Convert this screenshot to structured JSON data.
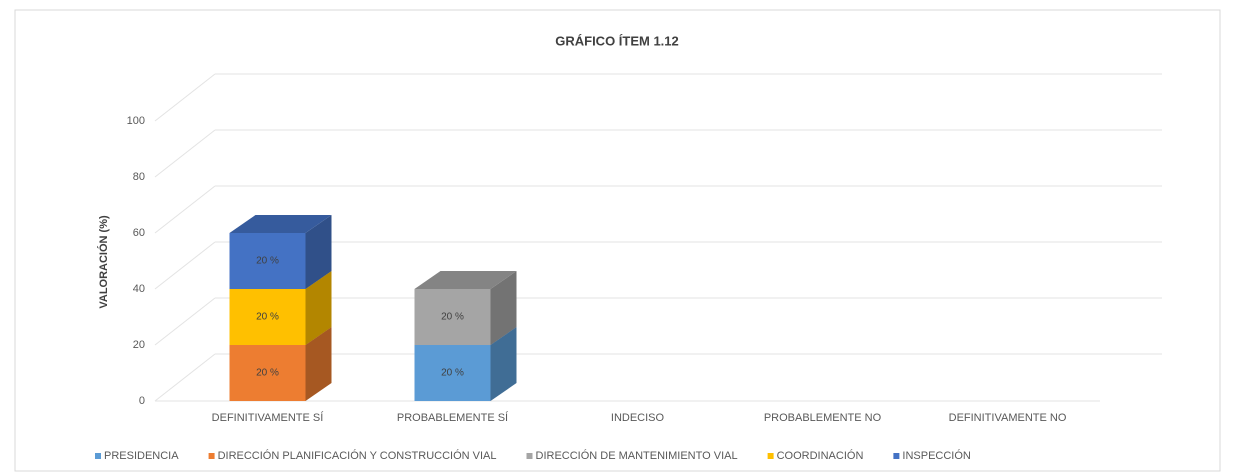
{
  "chart_data": {
    "type": "bar3d-stacked",
    "title": "GRÁFICO ÍTEM 1.12",
    "y_label": "VALORACIÓN (%)",
    "categories": [
      "DEFINITIVAMENTE SÍ",
      "PROBABLEMENTE SÍ",
      "INDECISO",
      "PROBABLEMENTE NO",
      "DEFINITIVAMENTE NO"
    ],
    "series": [
      {
        "name": "PRESIDENCIA",
        "color": "#5b9bd5",
        "values": [
          0,
          20,
          0,
          0,
          0
        ],
        "value_labels": [
          null,
          "20 %",
          null,
          null,
          null
        ]
      },
      {
        "name": "DIRECCIÓN PLANIFICACIÓN Y CONSTRUCCIÓN VIAL",
        "color": "#ed7d31",
        "values": [
          20,
          0,
          0,
          0,
          0
        ],
        "value_labels": [
          "20 %",
          null,
          null,
          null,
          null
        ]
      },
      {
        "name": "DIRECCIÓN DE MANTENIMIENTO VIAL",
        "color": "#a5a5a5",
        "values": [
          0,
          20,
          0,
          0,
          0
        ],
        "value_labels": [
          null,
          "20 %",
          null,
          null,
          null
        ]
      },
      {
        "name": "COORDINACIÓN",
        "color": "#ffc000",
        "values": [
          20,
          0,
          0,
          0,
          0
        ],
        "value_labels": [
          "20 %",
          null,
          null,
          null,
          null
        ]
      },
      {
        "name": "INSPECCIÓN",
        "color": "#4472c4",
        "values": [
          20,
          0,
          0,
          0,
          0
        ],
        "value_labels": [
          "20 %",
          null,
          null,
          null,
          null
        ]
      }
    ],
    "ylim": [
      0,
      100
    ],
    "yticks": [
      0,
      20,
      40,
      60,
      80,
      100
    ],
    "grid": true,
    "legend": "bottom"
  }
}
